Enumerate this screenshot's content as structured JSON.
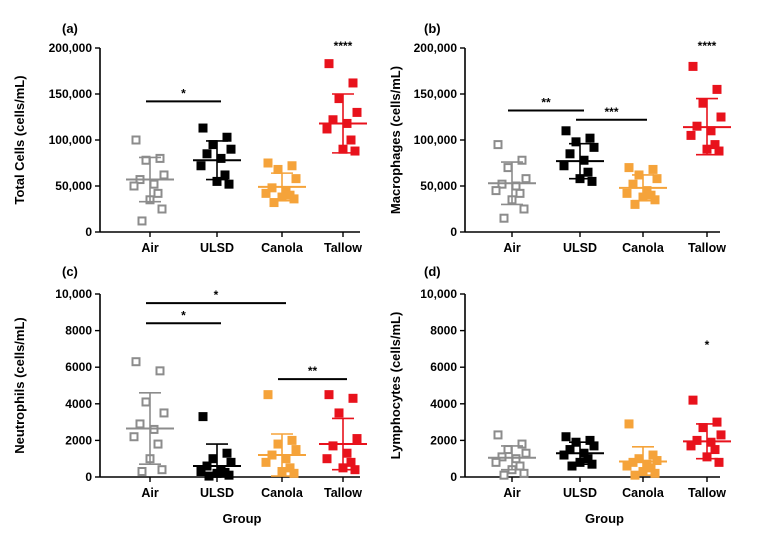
{
  "colors": {
    "Air": "#8c8c8c",
    "ULSD": "#000000",
    "Canola": "#f5a33a",
    "Tallow": "#e8121c"
  },
  "chart_data": [
    {
      "type": "scatter",
      "panel": "(a)",
      "xlabel": "",
      "ylabel": "Total Cells (cells/mL)",
      "ylim": [
        0,
        200000
      ],
      "yticks": [
        0,
        50000,
        100000,
        150000,
        200000
      ],
      "ytick_labels": [
        "0",
        "50,000",
        "100,000",
        "150,000",
        "200,000"
      ],
      "categories": [
        "Air",
        "ULSD",
        "Canola",
        "Tallow"
      ],
      "series": [
        {
          "name": "Air",
          "marker": "square-open",
          "values": [
            100000,
            80000,
            78000,
            62000,
            57000,
            52000,
            50000,
            42000,
            35000,
            25000,
            12000
          ],
          "mean": 57000,
          "sd_low": 33000,
          "sd_high": 81000
        },
        {
          "name": "ULSD",
          "marker": "square-filled",
          "values": [
            113000,
            103000,
            95000,
            90000,
            85000,
            80000,
            72000,
            62000,
            55000,
            52000
          ],
          "mean": 78000,
          "sd_low": 57000,
          "sd_high": 99000
        },
        {
          "name": "Canola",
          "marker": "square-filled",
          "values": [
            75000,
            72000,
            68000,
            58000,
            48000,
            44000,
            42000,
            40000,
            38000,
            36000,
            32000
          ],
          "mean": 49000,
          "sd_low": 34000,
          "sd_high": 64000
        },
        {
          "name": "Tallow",
          "marker": "square-filled",
          "values": [
            183000,
            162000,
            145000,
            130000,
            122000,
            118000,
            112000,
            100000,
            90000,
            88000
          ],
          "mean": 118000,
          "sd_low": 86000,
          "sd_high": 150000
        }
      ],
      "annotations": [
        {
          "text": "*",
          "x1": "Air",
          "x2": "ULSD",
          "y": 142000
        },
        {
          "text": "****",
          "x": "Tallow",
          "y": 198000
        }
      ]
    },
    {
      "type": "scatter",
      "panel": "(b)",
      "xlabel": "",
      "ylabel": "Macrophages (cells/mL)",
      "ylim": [
        0,
        200000
      ],
      "yticks": [
        0,
        50000,
        100000,
        150000,
        200000
      ],
      "ytick_labels": [
        "0",
        "50,000",
        "100,000",
        "150,000",
        "200,000"
      ],
      "categories": [
        "Air",
        "ULSD",
        "Canola",
        "Tallow"
      ],
      "series": [
        {
          "name": "Air",
          "marker": "square-open",
          "values": [
            95000,
            78000,
            70000,
            58000,
            52000,
            50000,
            45000,
            42000,
            35000,
            25000,
            15000
          ],
          "mean": 53000,
          "sd_low": 30000,
          "sd_high": 76000
        },
        {
          "name": "ULSD",
          "marker": "square-filled",
          "values": [
            110000,
            102000,
            98000,
            92000,
            85000,
            78000,
            72000,
            65000,
            58000,
            55000
          ],
          "mean": 77000,
          "sd_low": 58000,
          "sd_high": 96000
        },
        {
          "name": "Canola",
          "marker": "square-filled",
          "values": [
            70000,
            68000,
            62000,
            58000,
            52000,
            45000,
            42000,
            40000,
            38000,
            35000,
            30000
          ],
          "mean": 48000,
          "sd_low": 34000,
          "sd_high": 62000
        },
        {
          "name": "Tallow",
          "marker": "square-filled",
          "values": [
            180000,
            155000,
            140000,
            125000,
            115000,
            110000,
            105000,
            95000,
            90000,
            88000
          ],
          "mean": 114000,
          "sd_low": 84000,
          "sd_high": 145000
        }
      ],
      "annotations": [
        {
          "text": "**",
          "x1": "Air",
          "x2": "ULSD",
          "y": 132000
        },
        {
          "text": "***",
          "x1": "ULSD",
          "x2": "Canola",
          "y": 122000
        },
        {
          "text": "****",
          "x": "Tallow",
          "y": 198000
        }
      ]
    },
    {
      "type": "scatter",
      "panel": "(c)",
      "xlabel": "Group",
      "ylabel": "Neutrophils (cells/mL)",
      "ylim": [
        0,
        10000
      ],
      "yticks": [
        0,
        2000,
        4000,
        6000,
        8000,
        10000
      ],
      "ytick_labels": [
        "0",
        "2000",
        "4000",
        "6000",
        "8000",
        "10,000"
      ],
      "categories": [
        "Air",
        "ULSD",
        "Canola",
        "Tallow"
      ],
      "series": [
        {
          "name": "Air",
          "marker": "square-open",
          "values": [
            6300,
            5800,
            4100,
            3500,
            2900,
            2600,
            2200,
            1800,
            1000,
            400,
            300
          ],
          "mean": 2650,
          "sd_low": 700,
          "sd_high": 4600
        },
        {
          "name": "ULSD",
          "marker": "square-filled",
          "values": [
            3300,
            1300,
            1000,
            800,
            600,
            400,
            300,
            250,
            200,
            100,
            50
          ],
          "mean": 600,
          "sd_low": 0,
          "sd_high": 1800
        },
        {
          "name": "Canola",
          "marker": "square-filled",
          "values": [
            4500,
            2000,
            1800,
            1500,
            1200,
            1000,
            800,
            500,
            300,
            200
          ],
          "mean": 1200,
          "sd_low": 50,
          "sd_high": 2350
        },
        {
          "name": "Tallow",
          "marker": "square-filled",
          "values": [
            4500,
            4300,
            3500,
            2100,
            1700,
            1300,
            1000,
            800,
            500,
            400
          ],
          "mean": 1800,
          "sd_low": 400,
          "sd_high": 3200
        }
      ],
      "annotations": [
        {
          "text": "*",
          "x1": "Air",
          "x2": "Canola",
          "y": 9500
        },
        {
          "text": "*",
          "x1": "Air",
          "x2": "ULSD",
          "y": 8400
        },
        {
          "text": "**",
          "x1": "Canola",
          "x2": "Tallow",
          "y": 5350
        }
      ]
    },
    {
      "type": "scatter",
      "panel": "(d)",
      "xlabel": "Group",
      "ylabel": "Lymphocytes (cells/mL)",
      "ylim": [
        0,
        10000
      ],
      "yticks": [
        0,
        2000,
        4000,
        6000,
        8000,
        10000
      ],
      "ytick_labels": [
        "0",
        "2000",
        "4000",
        "6000",
        "8000",
        "10,000"
      ],
      "categories": [
        "Air",
        "ULSD",
        "Canola",
        "Tallow"
      ],
      "series": [
        {
          "name": "Air",
          "marker": "square-open",
          "values": [
            2300,
            1800,
            1500,
            1300,
            1100,
            1000,
            800,
            600,
            400,
            200,
            100
          ],
          "mean": 1050,
          "sd_low": 400,
          "sd_high": 1700
        },
        {
          "name": "ULSD",
          "marker": "square-filled",
          "values": [
            2200,
            2000,
            1900,
            1700,
            1500,
            1300,
            1200,
            1000,
            800,
            700,
            600
          ],
          "mean": 1300,
          "sd_low": 700,
          "sd_high": 1900
        },
        {
          "name": "Canola",
          "marker": "square-filled",
          "values": [
            2900,
            1200,
            1000,
            900,
            800,
            700,
            600,
            500,
            300,
            200,
            100
          ],
          "mean": 850,
          "sd_low": 100,
          "sd_high": 1650
        },
        {
          "name": "Tallow",
          "marker": "square-filled",
          "values": [
            4200,
            3000,
            2700,
            2300,
            2000,
            1900,
            1700,
            1500,
            1100,
            800
          ],
          "mean": 1950,
          "sd_low": 1000,
          "sd_high": 2900
        }
      ],
      "annotations": [
        {
          "text": "*",
          "x": "Tallow",
          "y": 7000
        }
      ]
    }
  ]
}
